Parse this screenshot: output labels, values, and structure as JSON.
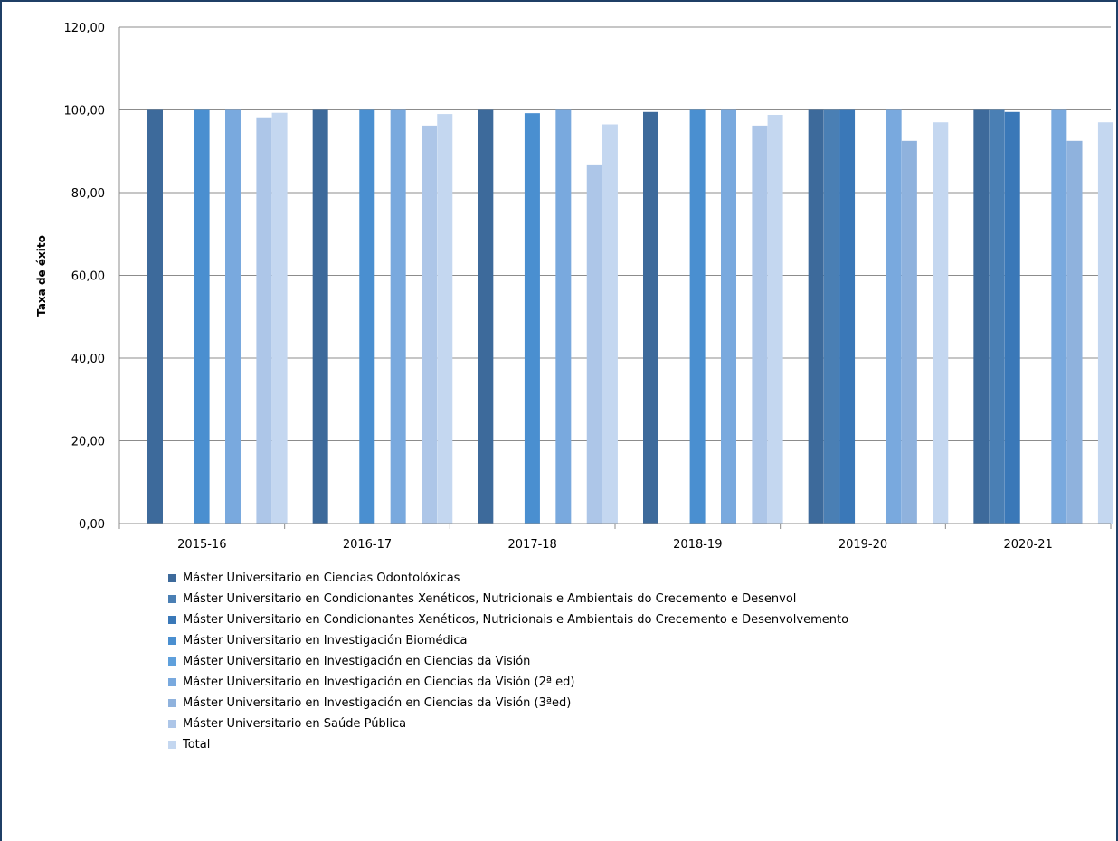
{
  "chart_data": {
    "type": "bar",
    "title": "",
    "xlabel": "",
    "ylabel": "Taxa de éxito",
    "ylim": [
      0,
      120
    ],
    "yticks": [
      "0,00",
      "20,00",
      "40,00",
      "60,00",
      "80,00",
      "100,00",
      "120,00"
    ],
    "grid": true,
    "legend_position": "bottom",
    "categories": [
      "2015-16",
      "2016-17",
      "2017-18",
      "2018-19",
      "2019-20",
      "2020-21"
    ],
    "series": [
      {
        "name": "Máster Universitario en Ciencias Odontolóxicas",
        "color": "#3d6a9b",
        "values": [
          100,
          100,
          100,
          99.5,
          100,
          100
        ]
      },
      {
        "name": "Máster Universitario en Condicionantes Xenéticos, Nutricionais e Ambientais do Crecemento e Desenvol",
        "color": "#4a7fb4",
        "values": [
          null,
          null,
          null,
          null,
          100,
          100
        ]
      },
      {
        "name": "Máster Universitario en Condicionantes Xenéticos, Nutricionais e Ambientais do Crecemento e Desenvolvemento",
        "color": "#3a78b8",
        "values": [
          null,
          null,
          null,
          null,
          100,
          99.5
        ]
      },
      {
        "name": "Máster Universitario en Investigación Biomédica",
        "color": "#4a8fd0",
        "values": [
          100,
          100,
          99.2,
          100,
          null,
          null
        ]
      },
      {
        "name": "Máster Universitario en Investigación en Ciencias da Visión",
        "color": "#5fa0dc",
        "values": [
          null,
          null,
          null,
          null,
          null,
          null
        ]
      },
      {
        "name": "Máster Universitario en Investigación en Ciencias da Visión (2ª ed)",
        "color": "#79a9de",
        "values": [
          100,
          100,
          100,
          100,
          100,
          100
        ]
      },
      {
        "name": "Máster Universitario en Investigación en Ciencias da Visión (3ªed)",
        "color": "#8fb2dd",
        "values": [
          null,
          null,
          null,
          null,
          92.5,
          92.5
        ]
      },
      {
        "name": "Máster Universitario en Saúde Pública",
        "color": "#adc6e8",
        "values": [
          98.2,
          96.2,
          86.8,
          96.2,
          null,
          null
        ]
      },
      {
        "name": "Total",
        "color": "#c4d7f0",
        "values": [
          99.3,
          99.0,
          96.5,
          98.8,
          97.0,
          97.0
        ]
      }
    ]
  },
  "legend_items": [
    "Máster Universitario en Ciencias Odontolóxicas",
    "Máster Universitario en Condicionantes Xenéticos, Nutricionais e Ambientais do Crecemento e Desenvol",
    "Máster Universitario en Condicionantes Xenéticos, Nutricionais e Ambientais do Crecemento e Desenvolvemento",
    "Máster Universitario en Investigación Biomédica",
    "Máster Universitario en Investigación en Ciencias da Visión",
    "Máster Universitario en Investigación en Ciencias da Visión (2ª ed)",
    "Máster Universitario en Investigación en Ciencias da Visión (3ªed)",
    "Máster Universitario en Saúde Pública",
    "Total"
  ]
}
